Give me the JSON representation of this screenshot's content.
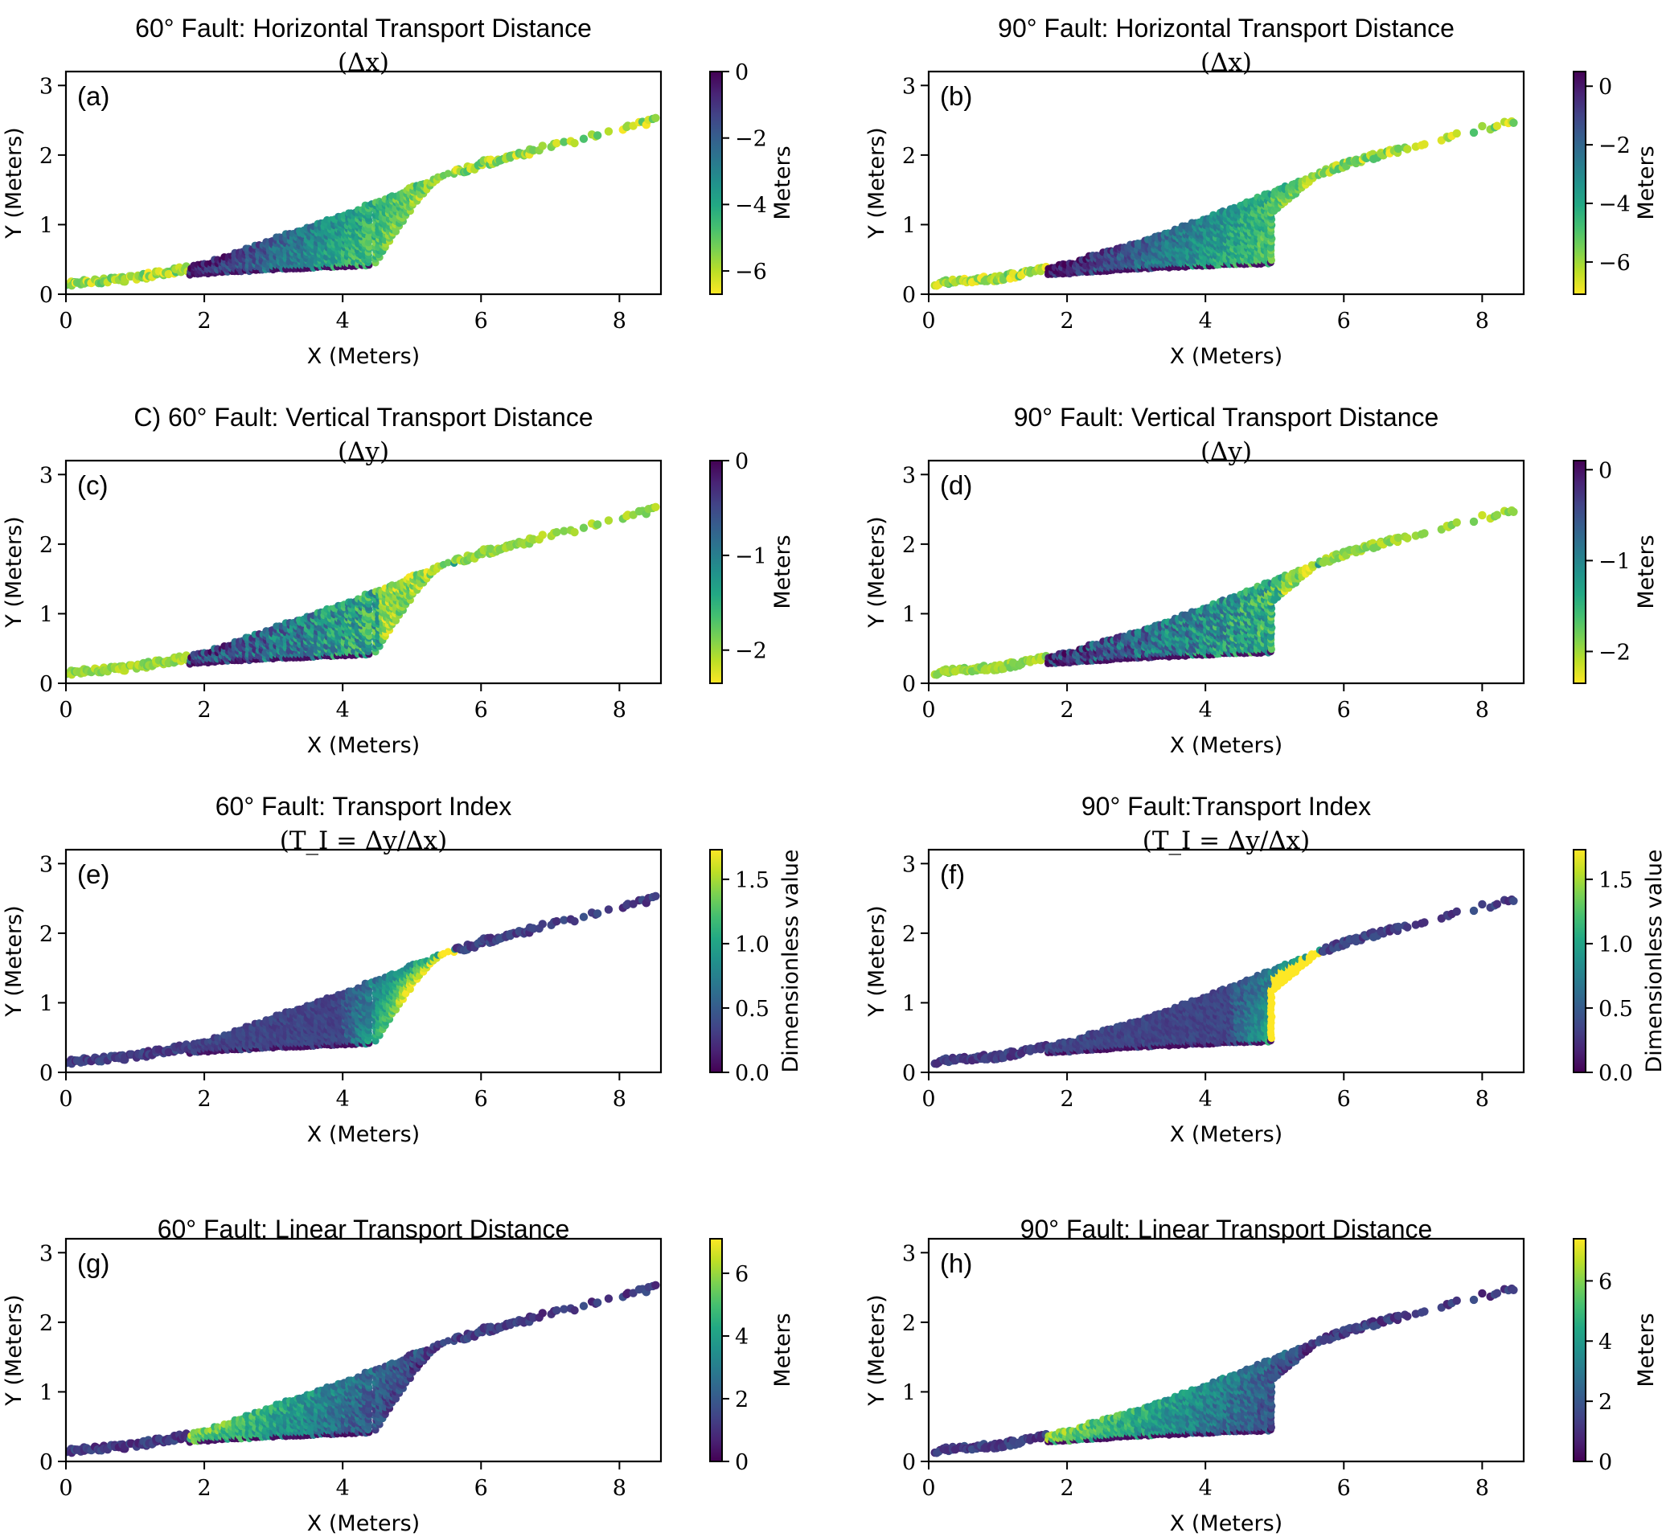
{
  "figure": {
    "description": "Eight-panel hexbin-style scatter comparison of 60° and 90° fault transport metrics"
  },
  "chart_data": [
    {
      "id": "a",
      "type": "scatter",
      "panel_label": "(a)",
      "title_line1": "60° Fault: Horizontal Transport Distance",
      "title_line2": "(Δx)",
      "xlabel": "X (Meters)",
      "ylabel": "Y (Meters)",
      "xlim": [
        0,
        8.6
      ],
      "ylim": [
        0,
        3.2
      ],
      "xticks": [
        0,
        2,
        4,
        6,
        8
      ],
      "yticks": [
        0,
        1,
        2,
        3
      ],
      "fault": "60",
      "metric": "dx",
      "colorbar": {
        "label": "Meters",
        "range": [
          -6.7,
          0
        ],
        "ticks": [
          0,
          -2,
          -4,
          -6
        ],
        "tick_labels": [
          "0",
          "−2",
          "−4",
          "−6"
        ],
        "reversed": true
      }
    },
    {
      "id": "b",
      "type": "scatter",
      "panel_label": "(b)",
      "title_line1": "90° Fault: Horizontal Transport Distance",
      "title_line2": "(Δx)",
      "xlabel": "X (Meters)",
      "ylabel": "Y (Meters)",
      "xlim": [
        0,
        8.6
      ],
      "ylim": [
        0,
        3.2
      ],
      "xticks": [
        0,
        2,
        4,
        6,
        8
      ],
      "yticks": [
        0,
        1,
        2,
        3
      ],
      "fault": "90",
      "metric": "dx",
      "colorbar": {
        "label": "Meters",
        "range": [
          -7.1,
          0.5
        ],
        "ticks": [
          0,
          -2,
          -4,
          -6
        ],
        "tick_labels": [
          "0",
          "−2",
          "−4",
          "−6"
        ],
        "reversed": true
      }
    },
    {
      "id": "c",
      "type": "scatter",
      "panel_label": "(c)",
      "title_line1": "C) 60° Fault: Vertical Transport Distance",
      "title_line2": "(Δy)",
      "xlabel": "X (Meters)",
      "ylabel": "Y (Meters)",
      "xlim": [
        0,
        8.6
      ],
      "ylim": [
        0,
        3.2
      ],
      "xticks": [
        0,
        2,
        4,
        6,
        8
      ],
      "yticks": [
        0,
        1,
        2,
        3
      ],
      "fault": "60",
      "metric": "dy",
      "colorbar": {
        "label": "Meters",
        "range": [
          -2.35,
          0
        ],
        "ticks": [
          0,
          -1,
          -2
        ],
        "tick_labels": [
          "0",
          "−1",
          "−2"
        ],
        "reversed": true
      }
    },
    {
      "id": "d",
      "type": "scatter",
      "panel_label": "(d)",
      "title_line1": "90° Fault: Vertical Transport Distance",
      "title_line2": "(Δy)",
      "xlabel": "X (Meters)",
      "ylabel": "Y (Meters)",
      "xlim": [
        0,
        8.6
      ],
      "ylim": [
        0,
        3.2
      ],
      "xticks": [
        0,
        2,
        4,
        6,
        8
      ],
      "yticks": [
        0,
        1,
        2,
        3
      ],
      "fault": "90",
      "metric": "dy",
      "colorbar": {
        "label": "Meters",
        "range": [
          -2.35,
          0.1
        ],
        "ticks": [
          0,
          -1,
          -2
        ],
        "tick_labels": [
          "0",
          "−1",
          "−2"
        ],
        "reversed": true
      }
    },
    {
      "id": "e",
      "type": "scatter",
      "panel_label": "(e)",
      "title_line1": "60° Fault: Transport Index",
      "title_line2": "(T_I = Δy/Δx)",
      "xlabel": "X (Meters)",
      "ylabel": "Y (Meters)",
      "xlim": [
        0,
        8.6
      ],
      "ylim": [
        0,
        3.2
      ],
      "xticks": [
        0,
        2,
        4,
        6,
        8
      ],
      "yticks": [
        0,
        1,
        2,
        3
      ],
      "fault": "60",
      "metric": "ti",
      "colorbar": {
        "label": "Dimensionless value",
        "range": [
          0,
          1.73
        ],
        "ticks": [
          0,
          0.5,
          1.0,
          1.5
        ],
        "tick_labels": [
          "0.0",
          "0.5",
          "1.0",
          "1.5"
        ],
        "reversed": false
      }
    },
    {
      "id": "f",
      "type": "scatter",
      "panel_label": "(f)",
      "title_line1": "90° Fault:Transport Index",
      "title_line2": "(T_I = Δy/Δx)",
      "xlabel": "X (Meters)",
      "ylabel": "Y (Meters)",
      "xlim": [
        0,
        8.6
      ],
      "ylim": [
        0,
        3.2
      ],
      "xticks": [
        0,
        2,
        4,
        6,
        8
      ],
      "yticks": [
        0,
        1,
        2,
        3
      ],
      "fault": "90",
      "metric": "ti",
      "colorbar": {
        "label": "Dimensionless value",
        "range": [
          0,
          1.73
        ],
        "ticks": [
          0,
          0.5,
          1.0,
          1.5
        ],
        "tick_labels": [
          "0.0",
          "0.5",
          "1.0",
          "1.5"
        ],
        "reversed": false
      }
    },
    {
      "id": "g",
      "type": "scatter",
      "panel_label": "(g)",
      "title_line1": "60° Fault: Linear Transport Distance",
      "title_line2": "",
      "xlabel": "X (Meters)",
      "ylabel": "Y (Meters)",
      "xlim": [
        0,
        8.6
      ],
      "ylim": [
        0,
        3.2
      ],
      "xticks": [
        0,
        2,
        4,
        6,
        8
      ],
      "yticks": [
        0,
        1,
        2,
        3
      ],
      "fault": "60",
      "metric": "lin",
      "colorbar": {
        "label": "Meters",
        "range": [
          0,
          7.1
        ],
        "ticks": [
          0,
          2,
          4,
          6
        ],
        "tick_labels": [
          "0",
          "2",
          "4",
          "6"
        ],
        "reversed": false
      }
    },
    {
      "id": "h",
      "type": "scatter",
      "panel_label": "(h)",
      "title_line1": "90° Fault: Linear Transport Distance",
      "title_line2": "",
      "xlabel": "X (Meters)",
      "ylabel": "Y (Meters)",
      "xlim": [
        0,
        8.6
      ],
      "ylim": [
        0,
        3.2
      ],
      "xticks": [
        0,
        2,
        4,
        6,
        8
      ],
      "yticks": [
        0,
        1,
        2,
        3
      ],
      "fault": "90",
      "metric": "lin",
      "colorbar": {
        "label": "Meters",
        "range": [
          0,
          7.4
        ],
        "ticks": [
          0,
          2,
          4,
          6
        ],
        "tick_labels": [
          "0",
          "2",
          "4",
          "6"
        ],
        "reversed": false
      }
    }
  ],
  "geometry_data": {
    "surface_profile_60": [
      [
        0.0,
        0.2
      ],
      [
        1.0,
        0.27
      ],
      [
        2.0,
        0.45
      ],
      [
        3.0,
        0.8
      ],
      [
        4.0,
        1.15
      ],
      [
        4.8,
        1.45
      ],
      [
        5.5,
        1.75
      ],
      [
        6.0,
        1.9
      ],
      [
        7.0,
        2.15
      ],
      [
        8.0,
        2.4
      ],
      [
        8.6,
        2.55
      ]
    ],
    "base_profile_60": [
      [
        0.0,
        0.17
      ],
      [
        1.0,
        0.22
      ],
      [
        2.0,
        0.3
      ],
      [
        3.0,
        0.36
      ],
      [
        4.4,
        0.42
      ]
    ],
    "fault_front_60": [
      [
        4.45,
        0.42
      ],
      [
        4.7,
        0.8
      ],
      [
        5.0,
        1.25
      ],
      [
        5.3,
        1.6
      ],
      [
        5.6,
        1.8
      ]
    ],
    "surface_profile_90": [
      [
        0.1,
        0.2
      ],
      [
        1.0,
        0.27
      ],
      [
        2.0,
        0.45
      ],
      [
        3.0,
        0.75
      ],
      [
        4.0,
        1.1
      ],
      [
        5.0,
        1.5
      ],
      [
        5.5,
        1.7
      ],
      [
        6.0,
        1.9
      ],
      [
        7.0,
        2.15
      ],
      [
        8.0,
        2.4
      ],
      [
        8.6,
        2.55
      ]
    ],
    "base_profile_90": [
      [
        0.1,
        0.17
      ],
      [
        1.0,
        0.22
      ],
      [
        2.0,
        0.3
      ],
      [
        3.0,
        0.37
      ],
      [
        5.0,
        0.45
      ]
    ],
    "fault_front_90": [
      [
        5.0,
        0.45
      ],
      [
        5.0,
        1.2
      ],
      [
        5.3,
        1.45
      ],
      [
        5.6,
        1.7
      ]
    ]
  }
}
